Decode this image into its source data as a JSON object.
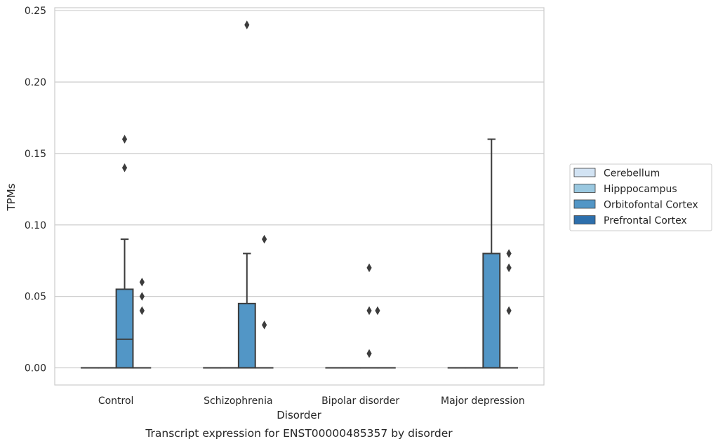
{
  "chart_data": {
    "type": "box",
    "caption": "Transcript expression for ENST00000485357 by disorder",
    "xlabel": "Disorder",
    "ylabel": "TPMs",
    "ylim": [
      -0.012,
      0.252
    ],
    "yticks": [
      0.0,
      0.05,
      0.1,
      0.15,
      0.2,
      0.25
    ],
    "ytick_labels": [
      "0.00",
      "0.05",
      "0.10",
      "0.15",
      "0.20",
      "0.25"
    ],
    "grid": "horizontal",
    "legend_position": "right",
    "categories": [
      "Control",
      "Schizophrenia",
      "Bipolar disorder",
      "Major depression"
    ],
    "series": [
      {
        "name": "Cerebellum",
        "color": "#d2e3f3",
        "boxes": [
          {
            "q1": 0,
            "median": 0,
            "q3": 0,
            "whisker_low": 0,
            "whisker_high": 0,
            "outliers": []
          },
          {
            "q1": 0,
            "median": 0,
            "q3": 0,
            "whisker_low": 0,
            "whisker_high": 0,
            "outliers": []
          },
          {
            "q1": 0,
            "median": 0,
            "q3": 0,
            "whisker_low": 0,
            "whisker_high": 0,
            "outliers": []
          },
          {
            "q1": 0,
            "median": 0,
            "q3": 0,
            "whisker_low": 0,
            "whisker_high": 0,
            "outliers": []
          }
        ]
      },
      {
        "name": "Hipppocampus",
        "color": "#9ac8e0",
        "boxes": [
          {
            "q1": 0,
            "median": 0,
            "q3": 0,
            "whisker_low": 0,
            "whisker_high": 0,
            "outliers": []
          },
          {
            "q1": 0,
            "median": 0,
            "q3": 0,
            "whisker_low": 0,
            "whisker_high": 0,
            "outliers": []
          },
          {
            "q1": 0,
            "median": 0,
            "q3": 0,
            "whisker_low": 0,
            "whisker_high": 0,
            "outliers": []
          },
          {
            "q1": 0,
            "median": 0,
            "q3": 0,
            "whisker_low": 0,
            "whisker_high": 0,
            "outliers": []
          }
        ]
      },
      {
        "name": "Orbitofontal Cortex",
        "color": "#5296c6",
        "boxes": [
          {
            "q1": 0,
            "median": 0.02,
            "q3": 0.055,
            "whisker_low": 0,
            "whisker_high": 0.09,
            "outliers": [
              0.06,
              0.05,
              0.04,
              0.14,
              0.16
            ],
            "outlier_side": "mixed"
          },
          {
            "q1": 0,
            "median": 0,
            "q3": 0.045,
            "whisker_low": 0,
            "whisker_high": 0.08,
            "outliers": [
              0.09,
              0.03,
              0.24
            ],
            "outlier_side": "mixed"
          },
          {
            "q1": 0,
            "median": 0,
            "q3": 0,
            "whisker_low": 0,
            "whisker_high": 0,
            "outliers": [
              0.07,
              0.04,
              0.01,
              0.04
            ]
          },
          {
            "q1": 0,
            "median": 0,
            "q3": 0.08,
            "whisker_low": 0,
            "whisker_high": 0.16,
            "outliers": [
              0.08,
              0.07,
              0.04
            ]
          }
        ]
      },
      {
        "name": "Prefrontal Cortex",
        "color": "#2d6fac",
        "boxes": [
          {
            "q1": 0,
            "median": 0,
            "q3": 0,
            "whisker_low": 0,
            "whisker_high": 0,
            "outliers": []
          },
          {
            "q1": 0,
            "median": 0,
            "q3": 0,
            "whisker_low": 0,
            "whisker_high": 0,
            "outliers": []
          },
          {
            "q1": 0,
            "median": 0,
            "q3": 0,
            "whisker_low": 0,
            "whisker_high": 0,
            "outliers": []
          },
          {
            "q1": 0,
            "median": 0,
            "q3": 0,
            "whisker_low": 0,
            "whisker_high": 0,
            "outliers": []
          }
        ]
      }
    ]
  }
}
